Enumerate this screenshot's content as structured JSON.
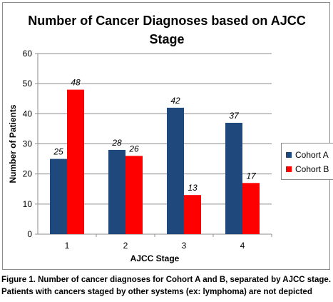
{
  "chart_data": {
    "type": "bar",
    "title_lines": [
      "Number of Cancer Diagnoses based on AJCC",
      "Stage"
    ],
    "xlabel": "AJCC Stage",
    "ylabel": "Number of Patients",
    "categories": [
      "1",
      "2",
      "3",
      "4"
    ],
    "ylim": [
      0,
      60
    ],
    "yticks": [
      0,
      10,
      20,
      30,
      40,
      50,
      60
    ],
    "grid": true,
    "legend_position": "right",
    "series": [
      {
        "name": "Cohort A",
        "color": "#1f497d",
        "values": [
          25,
          28,
          42,
          37
        ]
      },
      {
        "name": "Cohort B",
        "color": "#ff0000",
        "values": [
          48,
          26,
          13,
          17
        ]
      }
    ]
  },
  "caption": {
    "line1": "Figure 1. Number of cancer diagnoses for Cohort A and B, separated by AJCC stage.",
    "line2": "Patients with cancers staged by other systems (ex: lymphoma) are not depicted"
  }
}
